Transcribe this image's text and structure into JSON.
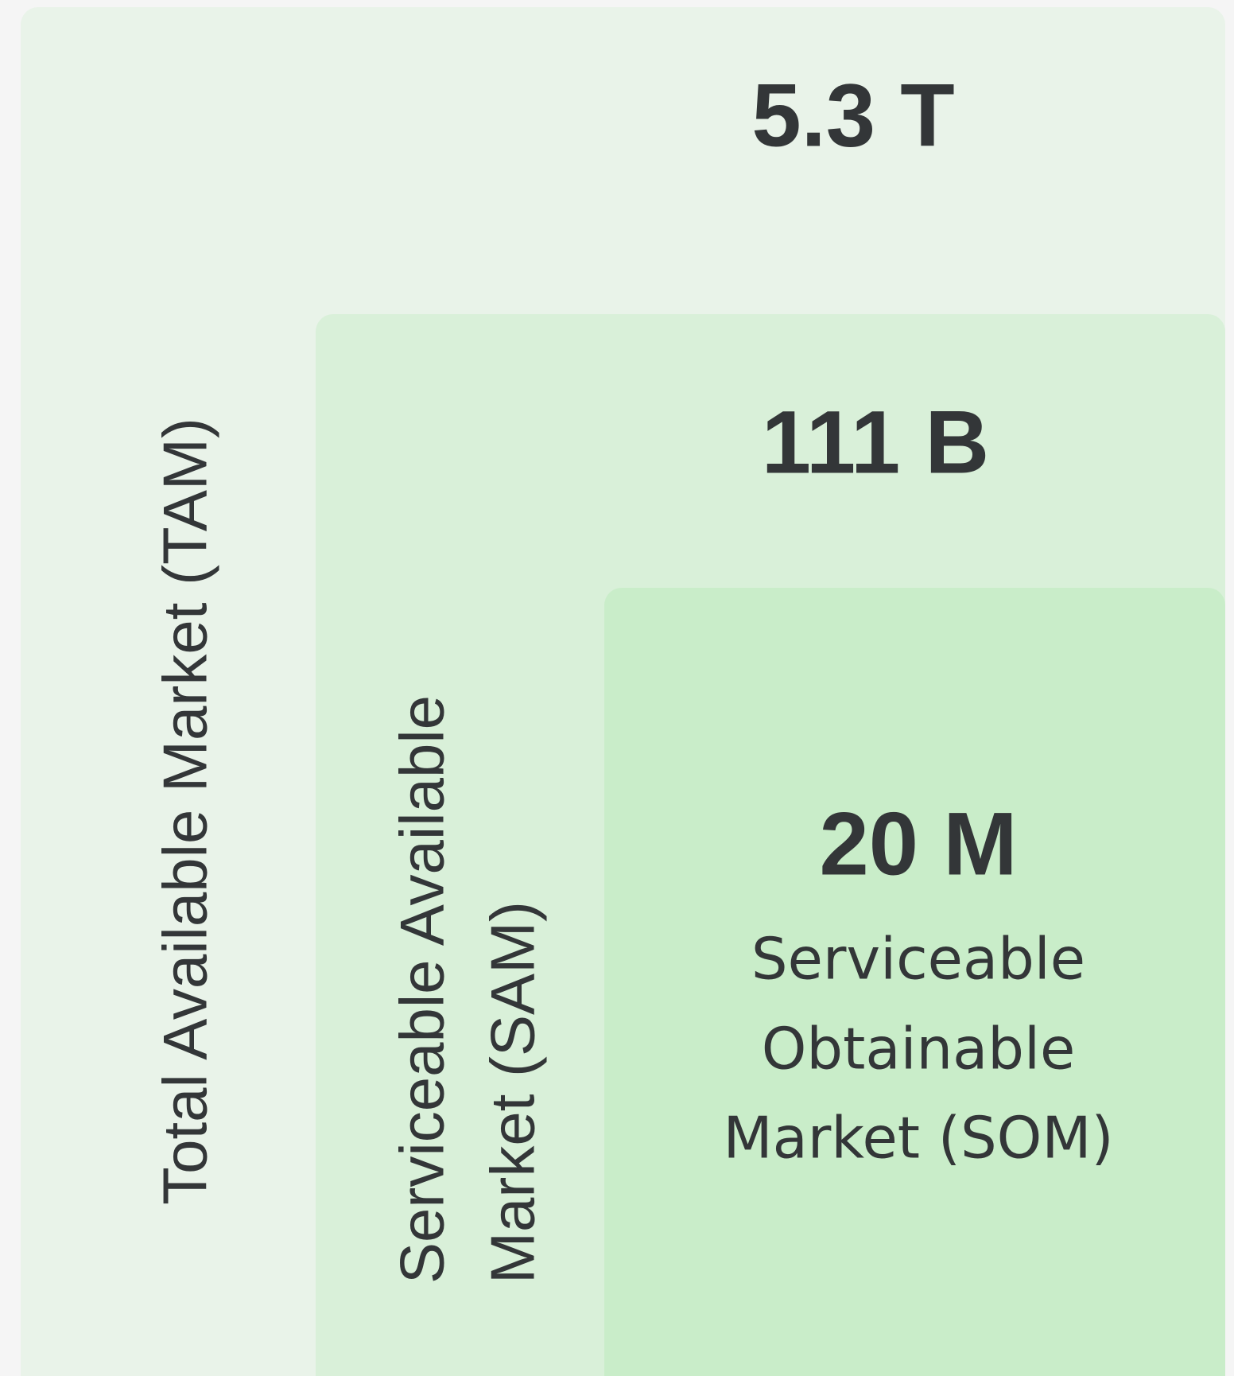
{
  "tam": {
    "value": "5.3 T",
    "label": "Total Available Market (TAM)"
  },
  "sam": {
    "value": "111 B",
    "label_lines": [
      "Serviceable Available",
      "Market (SAM)"
    ]
  },
  "som": {
    "value": "20 M",
    "label_lines": [
      "Serviceable",
      "Obtainable",
      "Market (SOM)"
    ]
  }
}
